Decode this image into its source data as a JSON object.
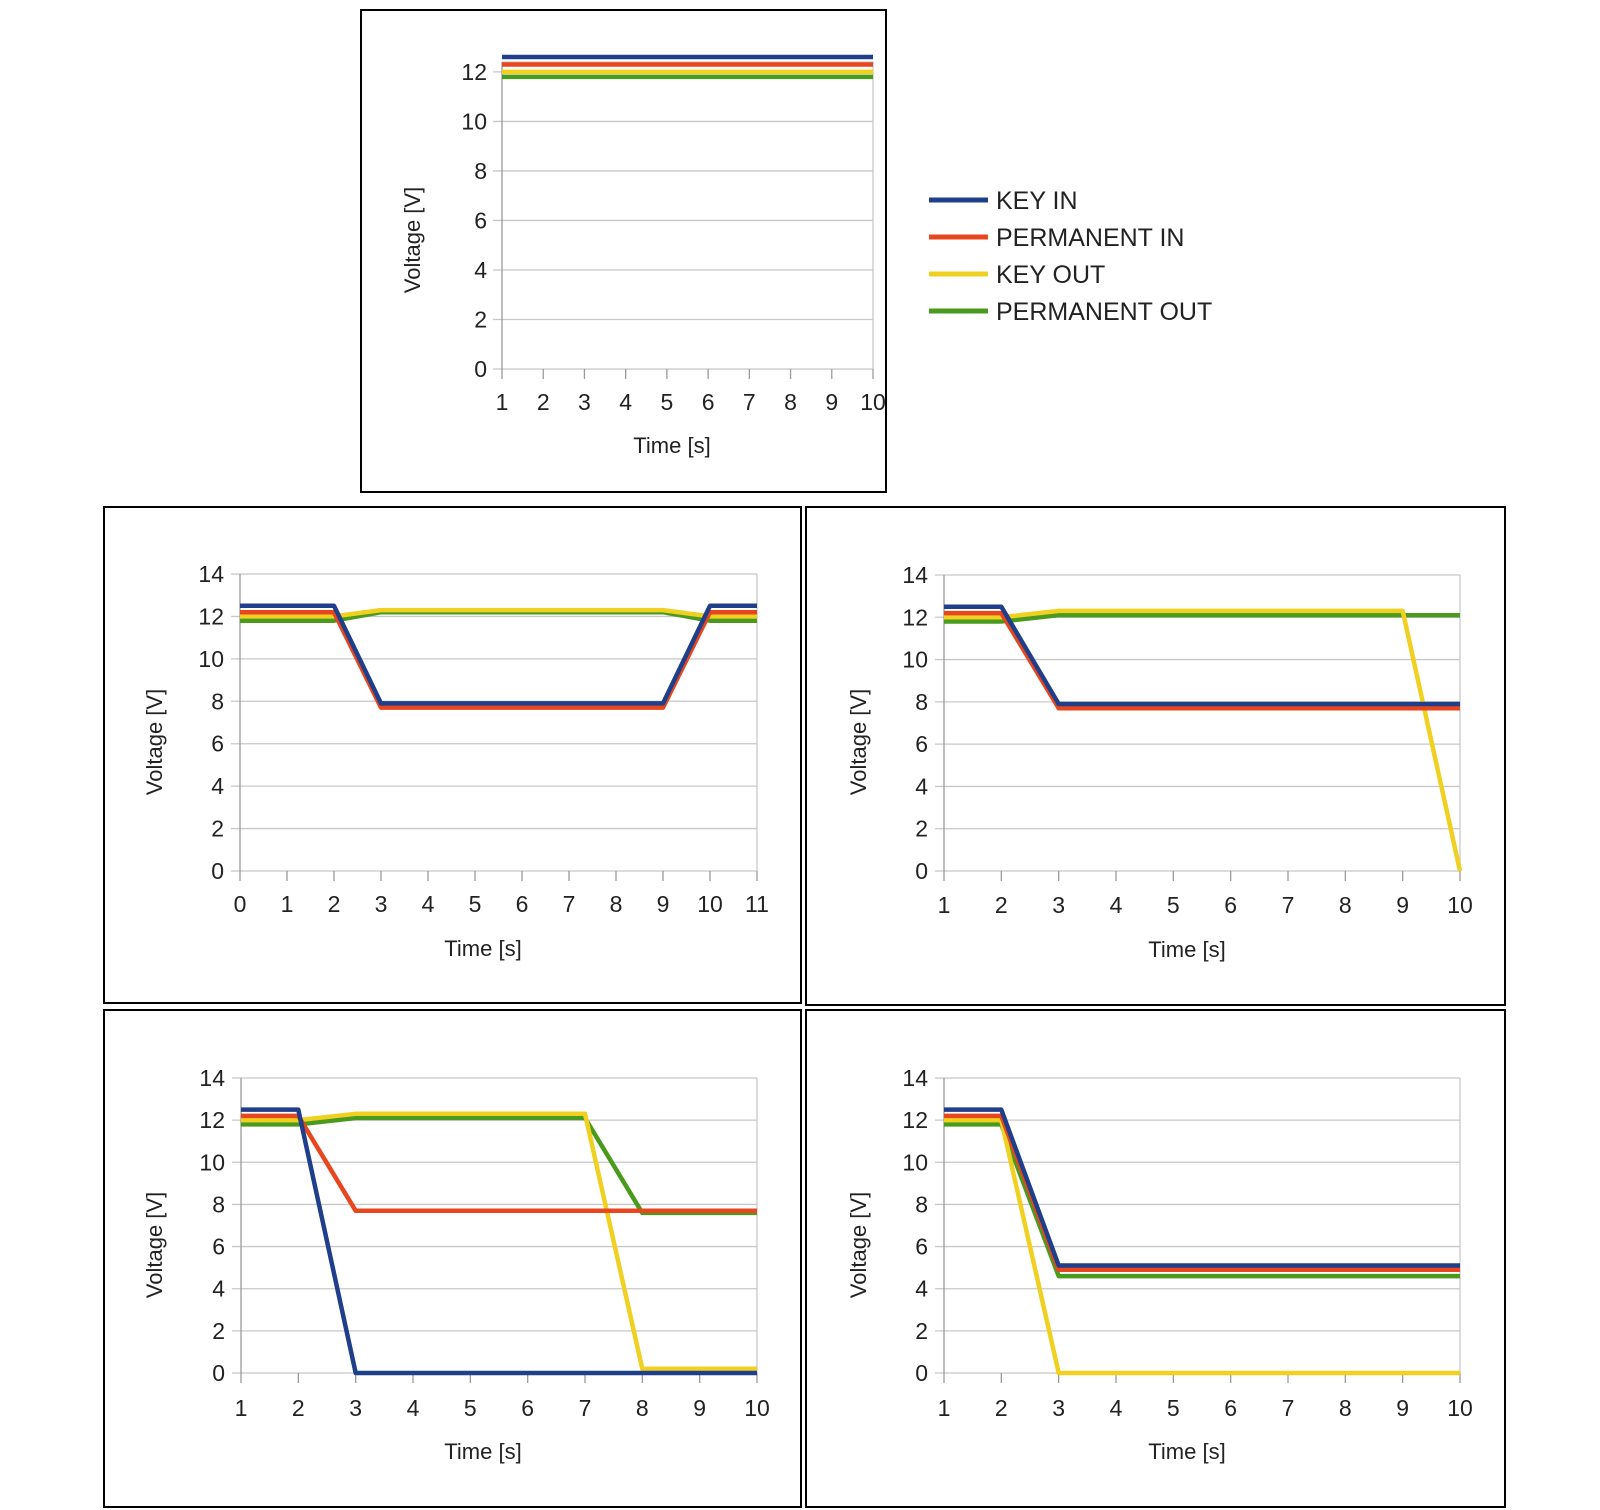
{
  "chart_data": [
    {
      "id": "top",
      "type": "line",
      "xlabel": "Time [s]",
      "ylabel": "Voltage [V]",
      "xlim": [
        1,
        10
      ],
      "ylim": [
        0,
        12.4
      ],
      "xticks": [
        1,
        2,
        3,
        4,
        5,
        6,
        7,
        8,
        9,
        10
      ],
      "yticks": [
        0,
        2,
        4,
        6,
        8,
        10,
        12
      ],
      "grid": true,
      "legend_position": "right",
      "legend": [
        "KEY IN",
        "PERMANENT IN",
        "KEY OUT",
        "PERMANENT OUT"
      ],
      "series": [
        {
          "name": "KEY IN",
          "color": "#1f3f8a",
          "x": [
            1,
            10
          ],
          "y": [
            12.6,
            12.6
          ]
        },
        {
          "name": "PERMANENT IN",
          "color": "#e8461e",
          "x": [
            1,
            10
          ],
          "y": [
            12.3,
            12.3
          ]
        },
        {
          "name": "KEY OUT",
          "color": "#f0d020",
          "x": [
            1,
            10
          ],
          "y": [
            12.0,
            12.0
          ]
        },
        {
          "name": "PERMANENT OUT",
          "color": "#4a9a1e",
          "x": [
            1,
            10
          ],
          "y": [
            11.8,
            11.8
          ]
        }
      ]
    },
    {
      "id": "middle-left",
      "type": "line",
      "xlabel": "Time [s]",
      "ylabel": "Voltage [V]",
      "xlim": [
        0,
        11
      ],
      "ylim": [
        0,
        14
      ],
      "xticks": [
        0,
        1,
        2,
        3,
        4,
        5,
        6,
        7,
        8,
        9,
        10,
        11
      ],
      "yticks": [
        0,
        2,
        4,
        6,
        8,
        10,
        12,
        14
      ],
      "grid": true,
      "series": [
        {
          "name": "KEY IN",
          "color": "#1f3f8a",
          "x": [
            0,
            2,
            3,
            9,
            10,
            11
          ],
          "y": [
            12.5,
            12.5,
            7.9,
            7.9,
            12.5,
            12.5
          ]
        },
        {
          "name": "PERMANENT IN",
          "color": "#e8461e",
          "x": [
            0,
            2,
            3,
            9,
            10,
            11
          ],
          "y": [
            12.2,
            12.2,
            7.7,
            7.7,
            12.2,
            12.2
          ]
        },
        {
          "name": "KEY OUT",
          "color": "#f0d020",
          "x": [
            0,
            2,
            3,
            9,
            10,
            11
          ],
          "y": [
            12.0,
            12.0,
            12.3,
            12.3,
            12.0,
            12.0
          ]
        },
        {
          "name": "PERMANENT OUT",
          "color": "#4a9a1e",
          "x": [
            0,
            2,
            3,
            9,
            10,
            11
          ],
          "y": [
            11.8,
            11.8,
            12.2,
            12.2,
            11.8,
            11.8
          ]
        }
      ]
    },
    {
      "id": "middle-right",
      "type": "line",
      "xlabel": "Time [s]",
      "ylabel": "Voltage [V]",
      "xlim": [
        1,
        10
      ],
      "ylim": [
        0,
        14
      ],
      "xticks": [
        1,
        2,
        3,
        4,
        5,
        6,
        7,
        8,
        9,
        10
      ],
      "yticks": [
        0,
        2,
        4,
        6,
        8,
        10,
        12,
        14
      ],
      "grid": true,
      "series": [
        {
          "name": "KEY IN",
          "color": "#1f3f8a",
          "x": [
            1,
            2,
            3,
            10
          ],
          "y": [
            12.5,
            12.5,
            7.9,
            7.9
          ]
        },
        {
          "name": "PERMANENT IN",
          "color": "#e8461e",
          "x": [
            1,
            2,
            3,
            10
          ],
          "y": [
            12.2,
            12.2,
            7.7,
            7.7
          ]
        },
        {
          "name": "KEY OUT",
          "color": "#f0d020",
          "x": [
            1,
            2,
            3,
            9,
            10
          ],
          "y": [
            12.0,
            12.0,
            12.3,
            12.3,
            0
          ]
        },
        {
          "name": "PERMANENT OUT",
          "color": "#4a9a1e",
          "x": [
            1,
            2,
            3,
            10
          ],
          "y": [
            11.8,
            11.8,
            12.1,
            12.1
          ]
        }
      ]
    },
    {
      "id": "bottom-left",
      "type": "line",
      "xlabel": "Time [s]",
      "ylabel": "Voltage [V]",
      "xlim": [
        1,
        10
      ],
      "ylim": [
        0,
        14
      ],
      "xticks": [
        1,
        2,
        3,
        4,
        5,
        6,
        7,
        8,
        9,
        10
      ],
      "yticks": [
        0,
        2,
        4,
        6,
        8,
        10,
        12,
        14
      ],
      "grid": true,
      "series": [
        {
          "name": "KEY IN",
          "color": "#1f3f8a",
          "x": [
            1,
            2,
            3,
            10
          ],
          "y": [
            12.5,
            12.5,
            0,
            0
          ]
        },
        {
          "name": "PERMANENT IN",
          "color": "#e8461e",
          "x": [
            1,
            2,
            3,
            10
          ],
          "y": [
            12.2,
            12.2,
            7.7,
            7.7
          ]
        },
        {
          "name": "KEY OUT",
          "color": "#f0d020",
          "x": [
            1,
            2,
            3,
            7,
            8,
            10
          ],
          "y": [
            12.0,
            12.0,
            12.3,
            12.3,
            0.2,
            0.2
          ]
        },
        {
          "name": "PERMANENT OUT",
          "color": "#4a9a1e",
          "x": [
            1,
            2,
            3,
            7,
            8,
            10
          ],
          "y": [
            11.8,
            11.8,
            12.1,
            12.1,
            7.6,
            7.6
          ]
        }
      ]
    },
    {
      "id": "bottom-right",
      "type": "line",
      "xlabel": "Time [s]",
      "ylabel": "Voltage [V]",
      "xlim": [
        1,
        10
      ],
      "ylim": [
        0,
        14
      ],
      "xticks": [
        1,
        2,
        3,
        4,
        5,
        6,
        7,
        8,
        9,
        10
      ],
      "yticks": [
        0,
        2,
        4,
        6,
        8,
        10,
        12,
        14
      ],
      "grid": true,
      "series": [
        {
          "name": "KEY IN",
          "color": "#1f3f8a",
          "x": [
            1,
            2,
            3,
            10
          ],
          "y": [
            12.5,
            12.5,
            5.1,
            5.1
          ]
        },
        {
          "name": "PERMANENT IN",
          "color": "#e8461e",
          "x": [
            1,
            2,
            3,
            10
          ],
          "y": [
            12.2,
            12.2,
            4.9,
            4.9
          ]
        },
        {
          "name": "KEY OUT",
          "color": "#f0d020",
          "x": [
            1,
            2,
            3,
            10
          ],
          "y": [
            12.0,
            12.0,
            0,
            0
          ]
        },
        {
          "name": "PERMANENT OUT",
          "color": "#4a9a1e",
          "x": [
            1,
            2,
            3,
            10
          ],
          "y": [
            11.8,
            11.8,
            4.6,
            4.6
          ]
        }
      ]
    }
  ]
}
